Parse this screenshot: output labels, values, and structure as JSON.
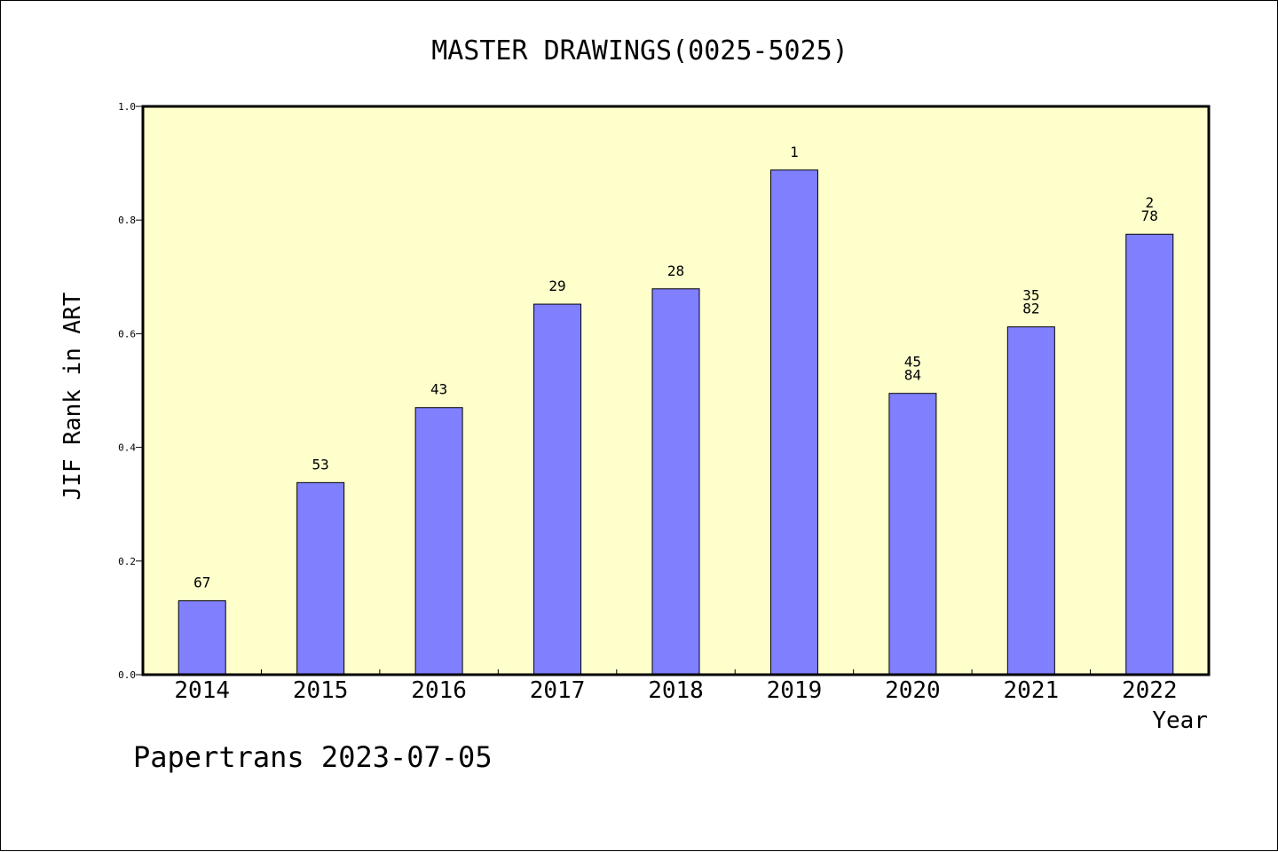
{
  "chart_data": {
    "type": "bar",
    "title": "MASTER DRAWINGS(0025-5025)",
    "xlabel": "Year",
    "ylabel": "JIF Rank in ART",
    "ylim": [
      0,
      1.0
    ],
    "yticks": [
      "0.0",
      "0.2",
      "0.4",
      "0.6",
      "0.8",
      "1.0"
    ],
    "categories": [
      "2014",
      "2015",
      "2016",
      "2017",
      "2018",
      "2019",
      "2020",
      "2021",
      "2022"
    ],
    "values": [
      0.13,
      0.338,
      0.47,
      0.652,
      0.679,
      0.888,
      0.495,
      0.612,
      0.775
    ],
    "labels": [
      [
        "67"
      ],
      [
        "53"
      ],
      [
        "43"
      ],
      [
        "29"
      ],
      [
        "28"
      ],
      [
        "1"
      ],
      [
        "45",
        "84"
      ],
      [
        "35",
        "82"
      ],
      [
        "2",
        "78"
      ]
    ],
    "colors": {
      "plot_background": "#FFFFCC",
      "bar_fill": "#8080FF",
      "bar_stroke": "#000000"
    },
    "grid": false
  },
  "footer": "Papertrans 2023-07-05"
}
